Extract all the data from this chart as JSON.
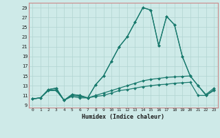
{
  "xlabel": "Humidex (Indice chaleur)",
  "background_color": "#ceeae8",
  "grid_color": "#b0d4d0",
  "line_color": "#1a7a6e",
  "xlim": [
    -0.5,
    23.5
  ],
  "ylim": [
    8.5,
    30
  ],
  "xticks": [
    0,
    1,
    2,
    3,
    4,
    5,
    6,
    7,
    8,
    9,
    10,
    11,
    12,
    13,
    14,
    15,
    16,
    17,
    18,
    19,
    20,
    21,
    22,
    23
  ],
  "yticks": [
    9,
    11,
    13,
    15,
    17,
    19,
    21,
    23,
    25,
    27,
    29
  ],
  "series": [
    [
      10.3,
      10.5,
      12.2,
      12.5,
      10.0,
      11.2,
      11.0,
      10.5,
      13.2,
      15.0,
      18.0,
      21.0,
      23.0,
      26.0,
      29.0,
      28.5,
      21.2,
      27.2,
      25.5,
      19.0,
      15.0,
      null,
      null,
      null
    ],
    [
      10.3,
      10.5,
      12.2,
      12.5,
      10.0,
      11.2,
      11.0,
      10.5,
      13.2,
      15.0,
      18.0,
      21.0,
      23.0,
      26.0,
      29.0,
      28.5,
      21.2,
      27.2,
      25.5,
      19.0,
      15.0,
      13.0,
      11.2,
      12.5
    ],
    [
      10.3,
      10.5,
      12.0,
      12.2,
      10.0,
      11.0,
      10.8,
      10.5,
      11.0,
      11.5,
      12.0,
      12.5,
      13.0,
      13.5,
      14.0,
      14.3,
      14.5,
      14.7,
      14.8,
      14.9,
      15.0,
      13.0,
      11.0,
      12.2
    ],
    [
      10.3,
      10.5,
      12.0,
      12.0,
      10.0,
      10.8,
      10.5,
      10.5,
      10.8,
      11.0,
      11.5,
      12.0,
      12.2,
      12.5,
      12.8,
      13.0,
      13.2,
      13.3,
      13.5,
      13.6,
      13.7,
      11.0,
      11.0,
      12.0
    ]
  ]
}
